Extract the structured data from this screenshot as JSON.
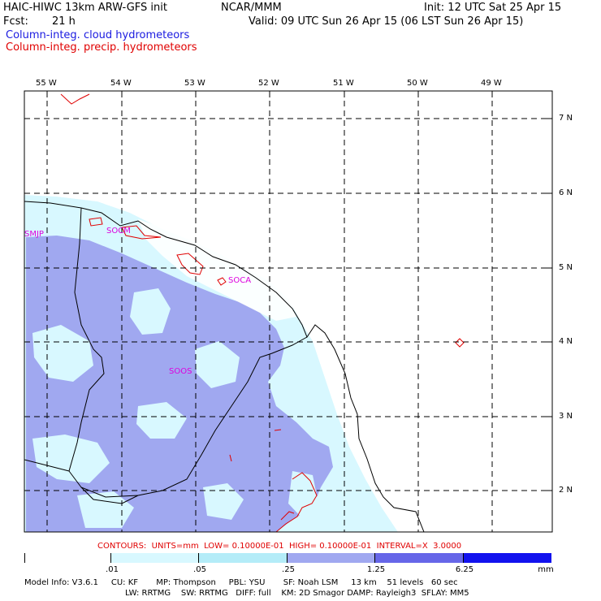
{
  "header": {
    "model": "HAIC-HIWC 13km ARW-GFS init",
    "org": "NCAR/MMM",
    "init": "Init: 12 UTC Sat 25 Apr 15",
    "fcst_label": "Fcst:",
    "fcst_value": "21 h",
    "valid": "Valid: 09 UTC Sun 26 Apr 15 (06 LST Sun 26 Apr 15)",
    "field1": "Column-integ. cloud hydrometeors",
    "field2": "Column-integ. precip. hydrometeors"
  },
  "map": {
    "lon_labels": [
      "55 W",
      "54 W",
      "53 W",
      "52 W",
      "51 W",
      "50 W",
      "49 W"
    ],
    "lat_labels": [
      "7 N",
      "6 N",
      "5 N",
      "4 N",
      "3 N",
      "2 N"
    ],
    "stations": [
      "SMJP",
      "SOCM",
      "SOCA",
      "SOOS"
    ],
    "colors": {
      "light": "#d8f8ff",
      "mid": "#a0a8f0",
      "frame": "#000000",
      "precip": "#e00000",
      "station": "#dd00dd"
    }
  },
  "contours_text": "CONTOURS:  UNITS=mm  LOW= 0.10000E-01  HIGH= 0.10000E-01  INTERVAL=X  3.0000",
  "colorbar": {
    "colors": [
      "#ffffff",
      "#d8f8ff",
      "#b4ecf8",
      "#a0a8f0",
      "#6666e8",
      "#3a3ae4",
      "#1212ee"
    ],
    "labels": [
      ".01",
      ".05",
      ".25",
      "1.25",
      "6.25"
    ],
    "units": "mm"
  },
  "footer": {
    "line1": "Model Info: V3.6.1     CU: KF       MP: Thompson     PBL: YSU       SF: Noah LSM     13 km    51 levels   60 sec",
    "line2": "LW: RRTMG    SW: RRTMG   DIFF: full    KM: 2D Smagor DAMP: Rayleigh3  SFLAY: MM5"
  }
}
